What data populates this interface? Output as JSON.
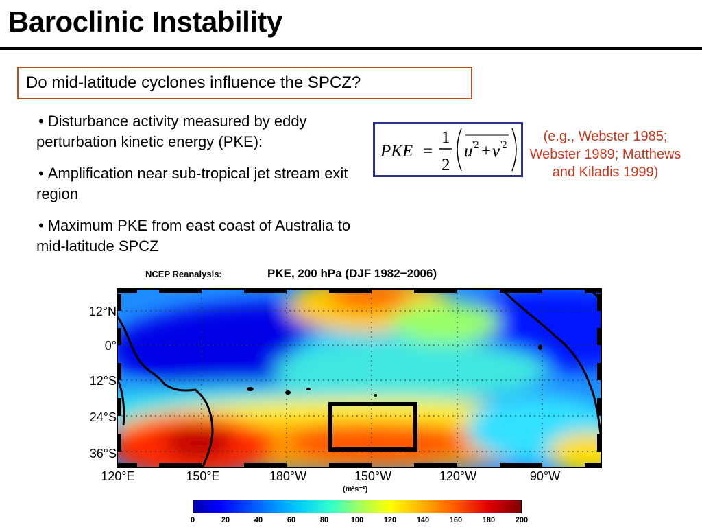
{
  "slide": {
    "title": "Baroclinic Instability",
    "question": "Do mid-latitude cyclones influence the SPCZ?",
    "bullets": [
      "Disturbance activity measured by eddy perturbation kinetic energy (PKE):",
      "Amplification near sub-tropical jet stream exit region",
      "Maximum PKE from east coast of Australia to mid-latitude SPCZ"
    ],
    "bullet_symbol": "•",
    "references": "(e.g., Webster 1985; Webster 1989; Matthews and Kiladis 1999)"
  },
  "formula": {
    "lhs": "PKE",
    "equals": "=",
    "numerator": "1",
    "denominator": "2",
    "u": "u",
    "v": "v",
    "prime_sq": "'2",
    "plus": "+"
  },
  "figure": {
    "source_label": "NCEP Reanalysis:",
    "title": "PKE, 200 hPa (DJF 1982−2006)",
    "lat_labels": [
      "12°N",
      "0°",
      "12°S",
      "24°S",
      "36°S"
    ],
    "lon_labels": [
      "120°E",
      "150°E",
      "180°W",
      "150°W",
      "120°W",
      "90°W"
    ],
    "units": "(m²s⁻²)",
    "colorbar_ticks": [
      "0",
      "20",
      "40",
      "60",
      "80",
      "100",
      "120",
      "140",
      "160",
      "180",
      "200"
    ],
    "colors": {
      "low": "#0000ff",
      "mid": "#99ff66",
      "high": "#e00000",
      "formula_border": "#2e3192",
      "question_border": "#c0501f",
      "reference_text": "#c8381c"
    }
  }
}
